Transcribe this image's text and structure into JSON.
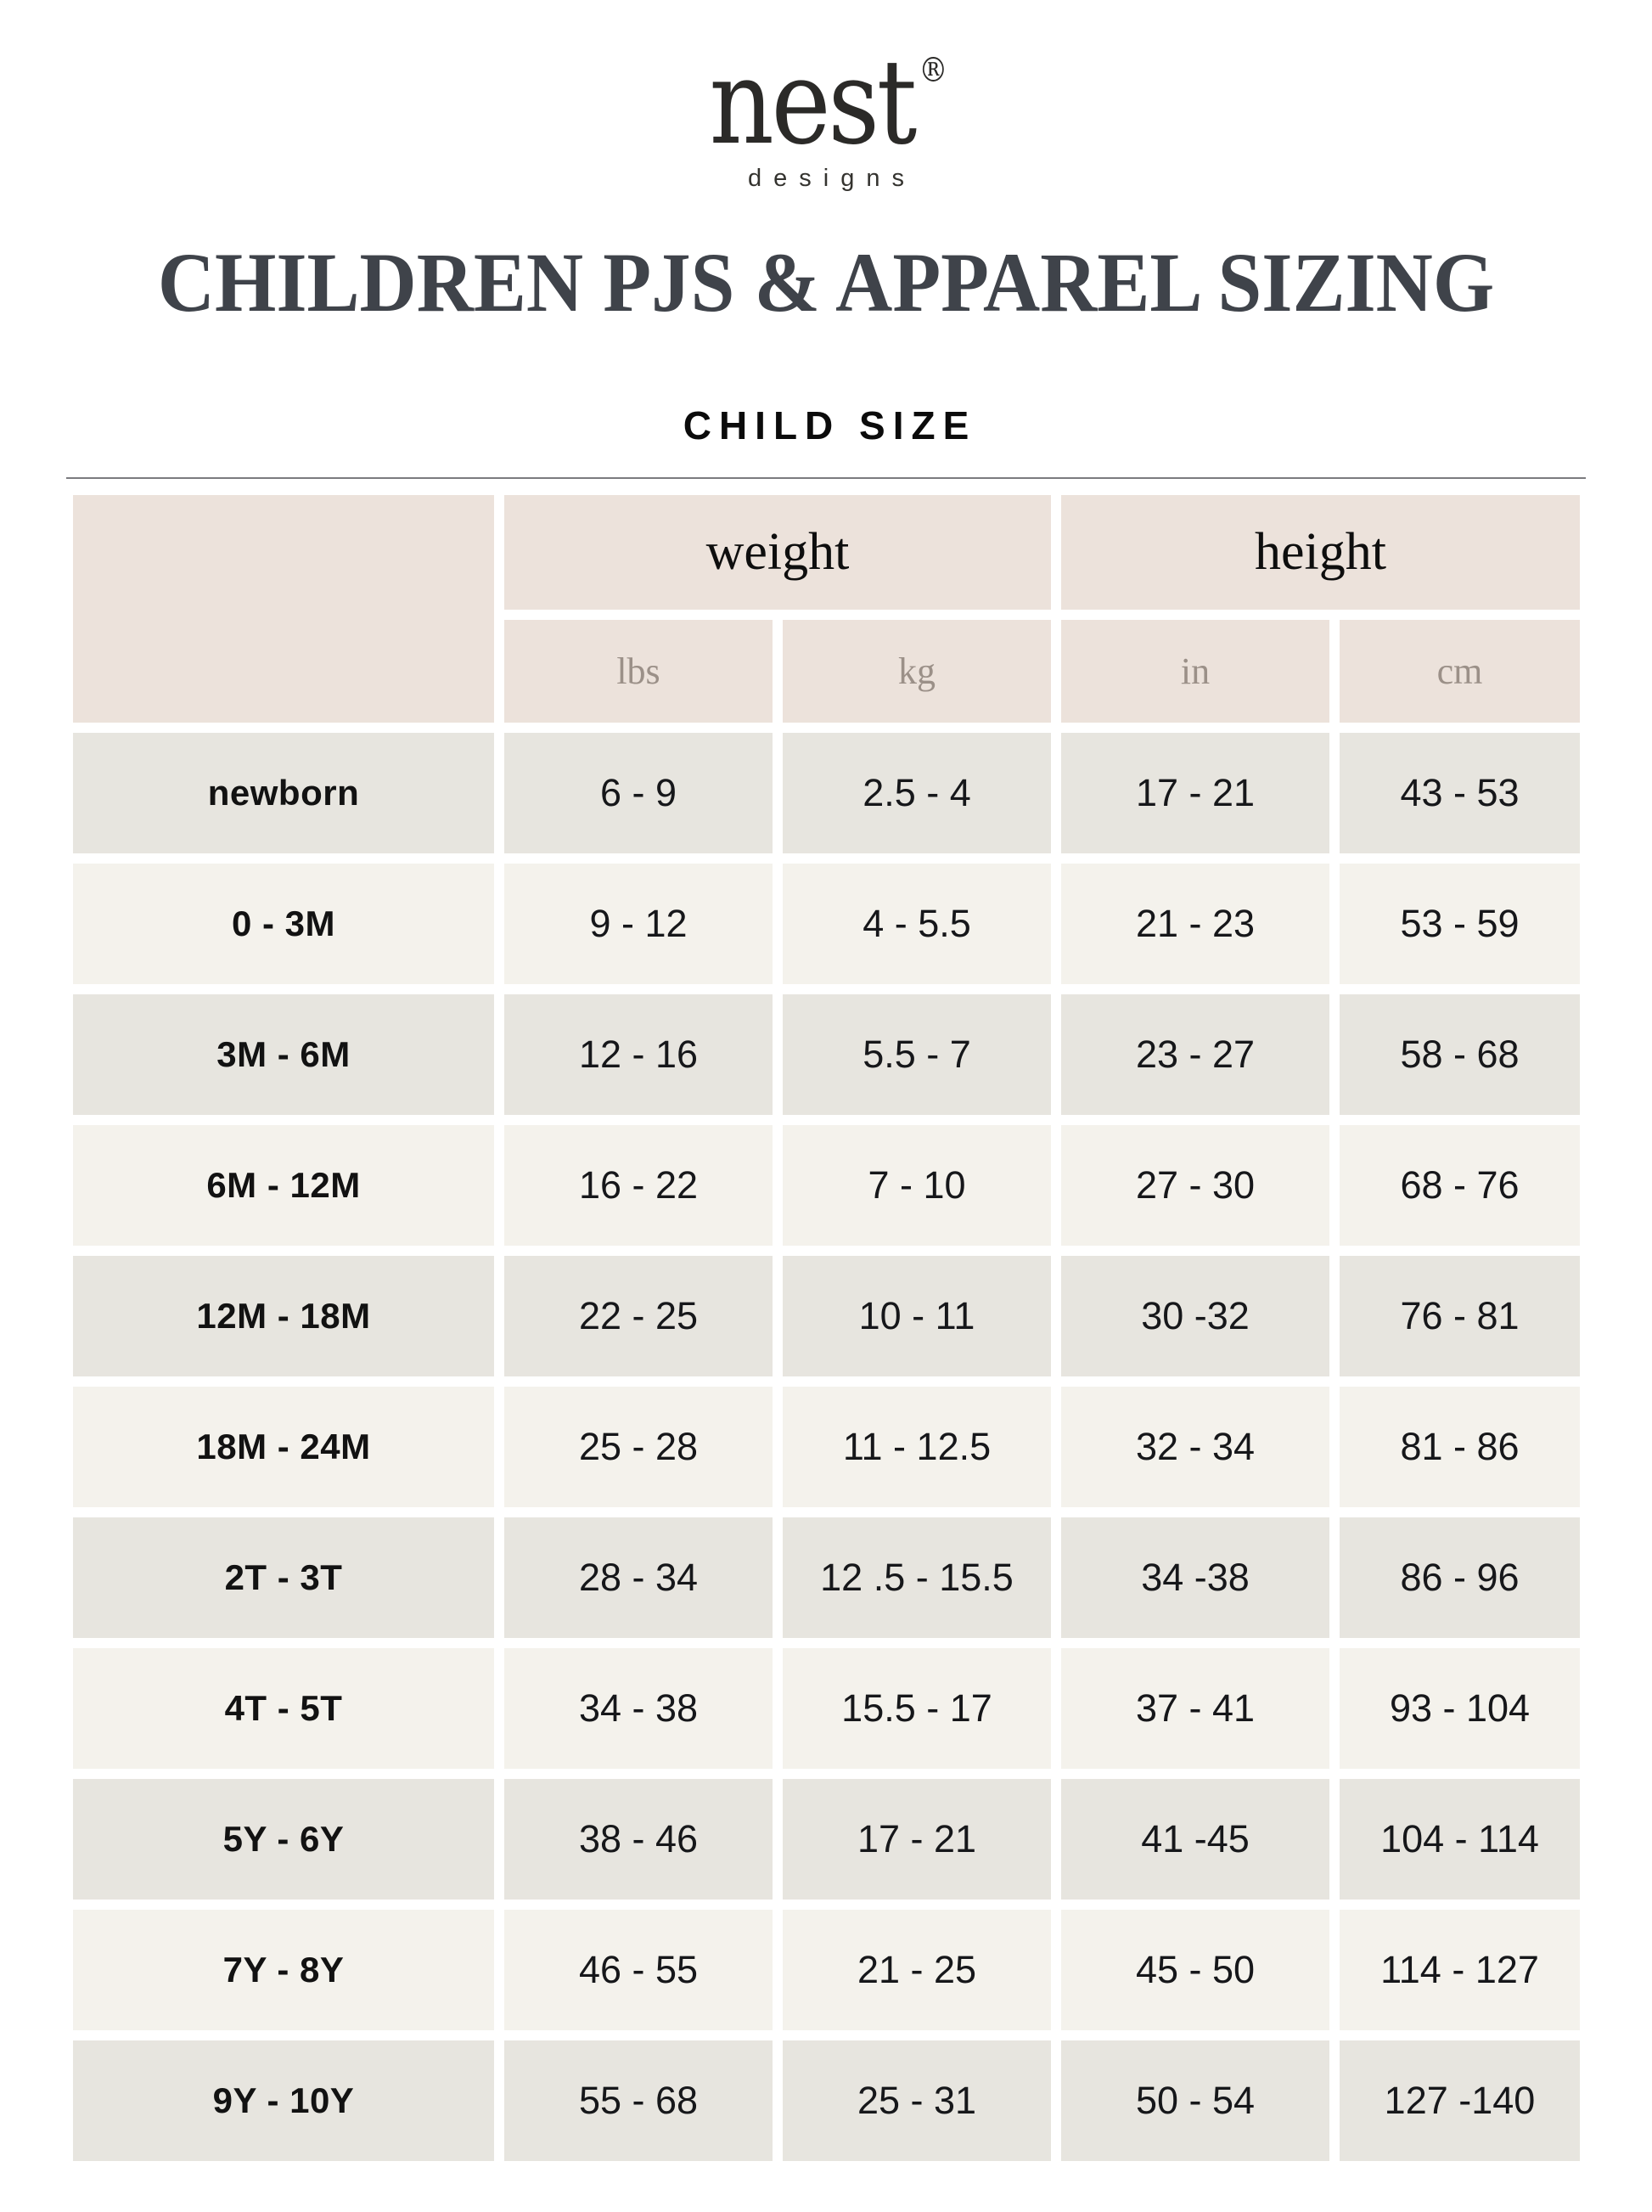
{
  "logo": {
    "brand": "nest",
    "registered": "®",
    "sub": "designs"
  },
  "title": "CHILDREN PJS & APPAREL SIZING",
  "subtitle": "CHILD SIZE",
  "colors": {
    "page_background": "#FFFFFF",
    "header_cell_background": "#ECE2DB",
    "row_dark_background": "#E7E5DF",
    "row_light_background": "#F4F2EC",
    "title_text": "#3F434A",
    "unit_text": "#9B9088",
    "value_text": "#16171A",
    "divider": "#7B7B7F"
  },
  "table": {
    "groups": [
      {
        "label": "weight"
      },
      {
        "label": "height"
      }
    ],
    "units": [
      "lbs",
      "kg",
      "in",
      "cm"
    ],
    "rows": [
      {
        "label": "newborn",
        "lbs": "6 - 9",
        "kg": "2.5 - 4",
        "in": "17 - 21",
        "cm": "43 - 53"
      },
      {
        "label": "0 - 3M",
        "lbs": "9 - 12",
        "kg": "4 - 5.5",
        "in": "21 - 23",
        "cm": "53 - 59"
      },
      {
        "label": "3M - 6M",
        "lbs": "12 - 16",
        "kg": "5.5 - 7",
        "in": "23 - 27",
        "cm": "58 - 68"
      },
      {
        "label": "6M - 12M",
        "lbs": "16 - 22",
        "kg": "7 - 10",
        "in": "27 - 30",
        "cm": "68 - 76"
      },
      {
        "label": "12M - 18M",
        "lbs": "22 - 25",
        "kg": "10 - 11",
        "in": "30 -32",
        "cm": "76 - 81"
      },
      {
        "label": "18M - 24M",
        "lbs": "25 - 28",
        "kg": "11 - 12.5",
        "in": "32 - 34",
        "cm": "81 - 86"
      },
      {
        "label": "2T - 3T",
        "lbs": "28 - 34",
        "kg": "12 .5 - 15.5",
        "in": "34 -38",
        "cm": "86 - 96"
      },
      {
        "label": "4T - 5T",
        "lbs": "34 - 38",
        "kg": "15.5 - 17",
        "in": "37 - 41",
        "cm": "93 - 104"
      },
      {
        "label": "5Y - 6Y",
        "lbs": "38 - 46",
        "kg": "17 - 21",
        "in": "41 -45",
        "cm": "104 - 114"
      },
      {
        "label": "7Y - 8Y",
        "lbs": "46 - 55",
        "kg": "21 - 25",
        "in": "45 - 50",
        "cm": "114 - 127"
      },
      {
        "label": "9Y - 10Y",
        "lbs": "55 - 68",
        "kg": "25 - 31",
        "in": "50 - 54",
        "cm": "127 -140"
      }
    ]
  }
}
